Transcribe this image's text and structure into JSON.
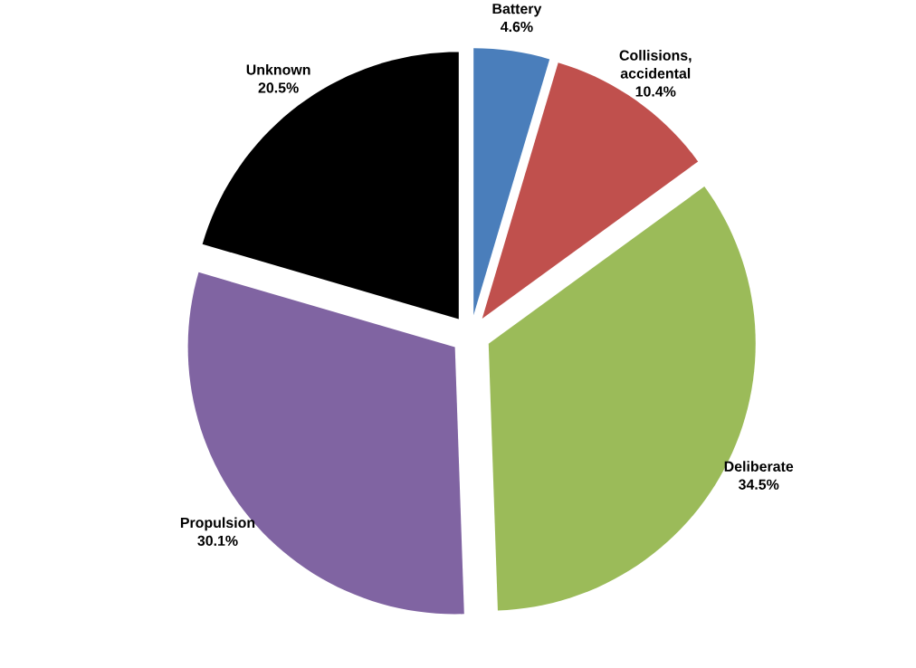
{
  "chart_data": {
    "type": "pie",
    "categories": [
      "Battery",
      "Collisions, accidental",
      "Deliberate",
      "Propulsion",
      "Unknown"
    ],
    "values": [
      4.6,
      10.4,
      34.5,
      30.1,
      20.5
    ],
    "colors": [
      "#4a7ebb",
      "#c0504d",
      "#9bbb59",
      "#8064a2",
      "#000000"
    ],
    "value_labels": [
      "4.6%",
      "10.4%",
      "34.5%",
      "30.1%",
      "20.5%"
    ]
  }
}
